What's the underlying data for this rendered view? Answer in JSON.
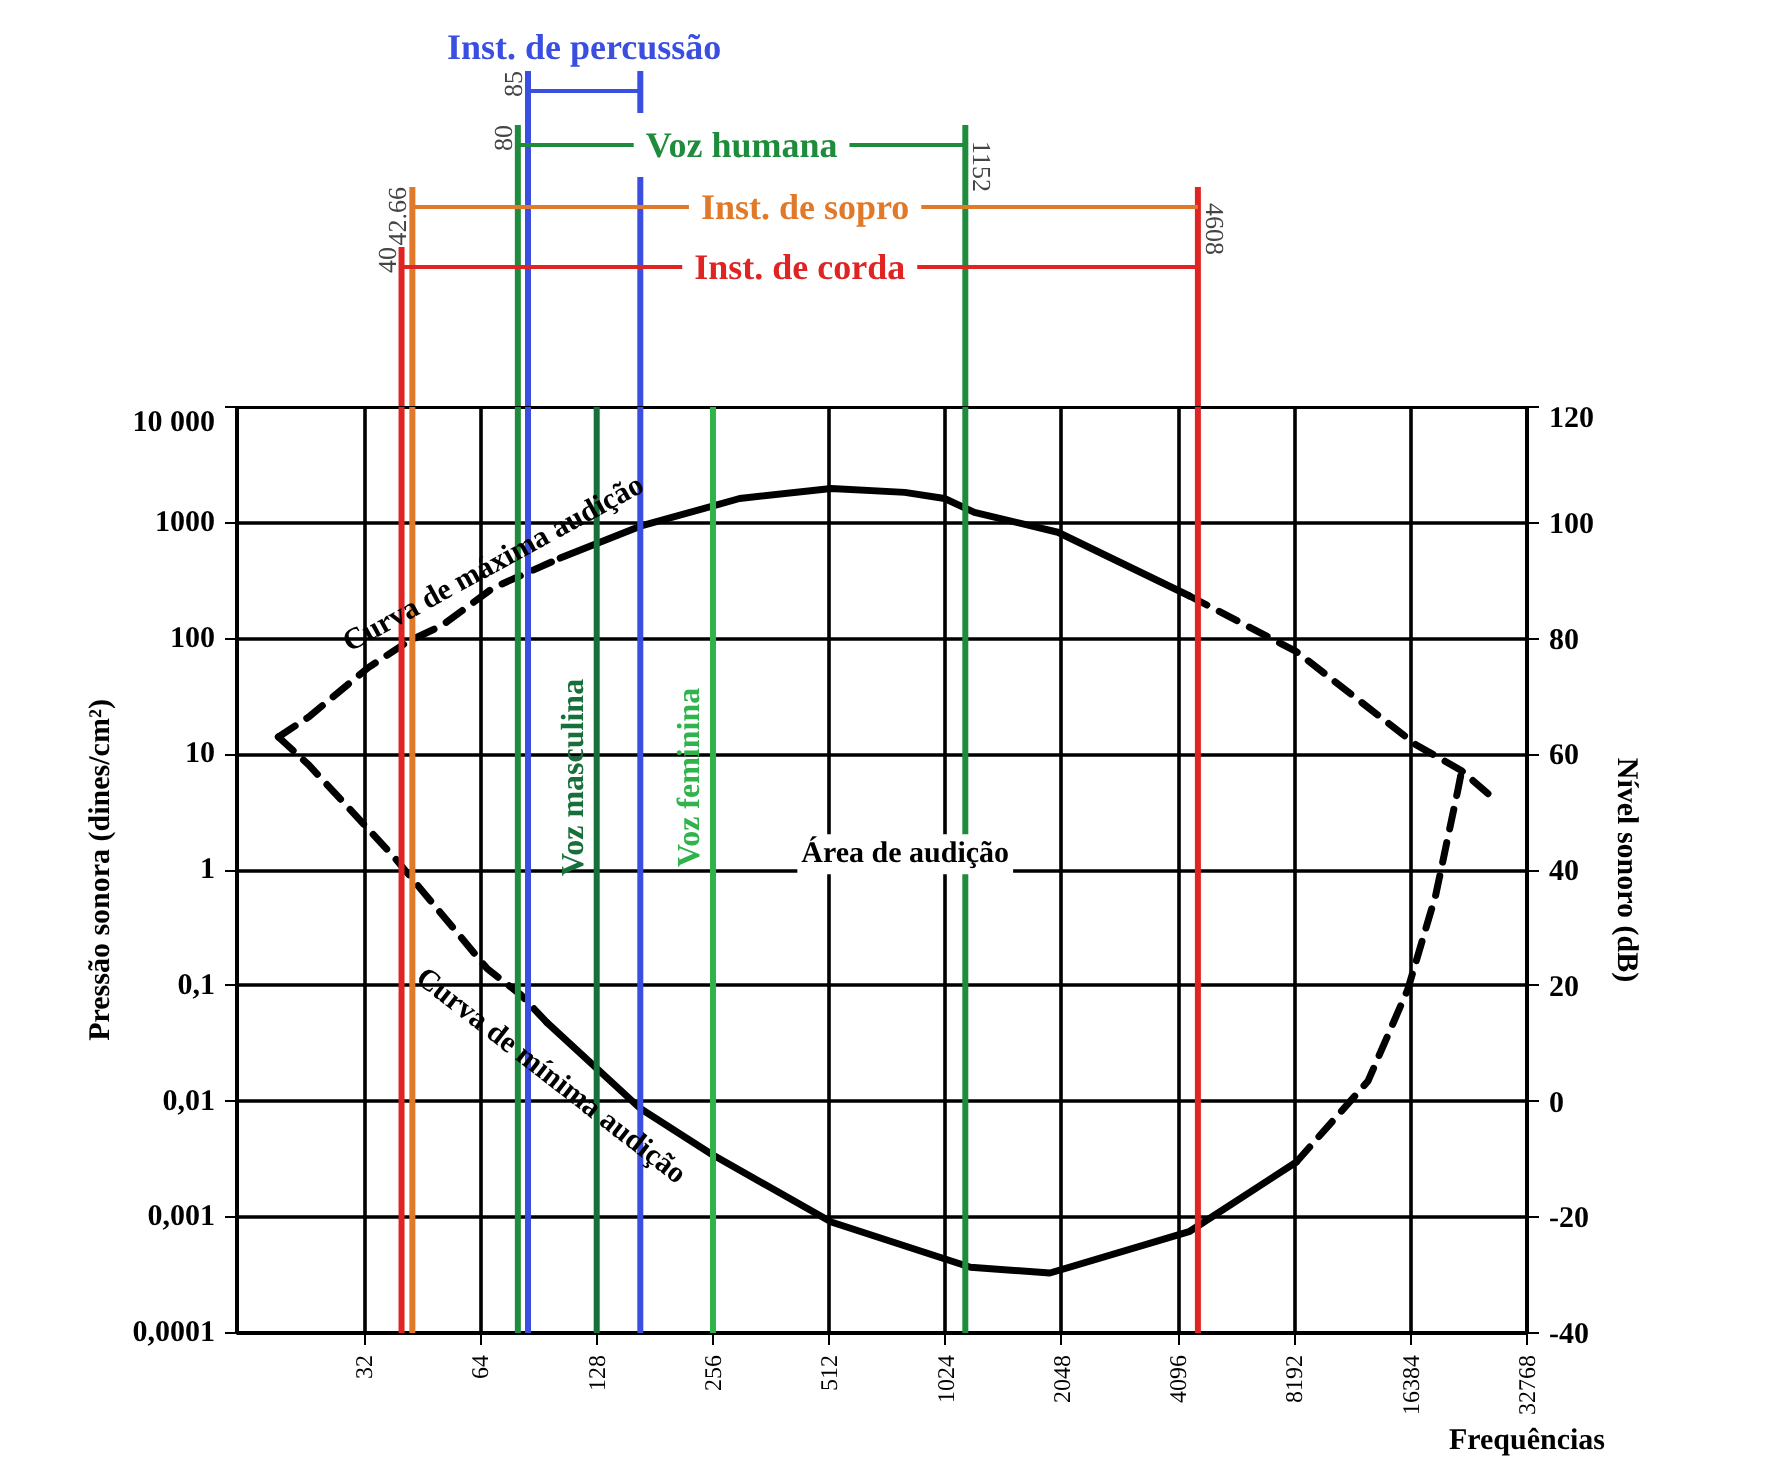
{
  "chart_data": {
    "type": "line",
    "xlabel": "Frequências",
    "ylabel": "Pressão sonora (dines/cm²)",
    "y2label": "Nível sonoro (dB)",
    "log": "xy",
    "xlim": [
      15,
      32768
    ],
    "xticks": [
      32,
      64,
      128,
      256,
      512,
      1024,
      2048,
      4096,
      8192,
      16384,
      32768
    ],
    "ylim": [
      0.0001,
      10000
    ],
    "yticks": [
      {
        "value": 0.0001,
        "label": "0,0001"
      },
      {
        "value": 0.001,
        "label": "0,001"
      },
      {
        "value": 0.01,
        "label": "0,01"
      },
      {
        "value": 0.1,
        "label": "0,1"
      },
      {
        "value": 1,
        "label": "1"
      },
      {
        "value": 10,
        "label": "10"
      },
      {
        "value": 100,
        "label": "100"
      },
      {
        "value": 1000,
        "label": "1000"
      },
      {
        "value": 10000,
        "label": "10 000"
      }
    ],
    "y2lim": [
      -40,
      120
    ],
    "y2ticks": [
      -40,
      -20,
      0,
      20,
      40,
      60,
      80,
      100,
      120
    ],
    "grid": true,
    "series": [
      {
        "color": "#000000",
        "line_style": "dashed",
        "x": [
          19.2,
          23,
          32.8,
          41.5,
          50.8,
          69.1,
          103
        ],
        "values": [
          14.1,
          21,
          56,
          94,
          129,
          274,
          495
        ]
      },
      {
        "color": "#000000",
        "line_style": "solid",
        "x": [
          103,
          166,
          300,
          518,
          803,
          1018,
          1216,
          2000,
          4372
        ],
        "values": [
          495,
          933,
          1620,
          1980,
          1830,
          1620,
          1230,
          828,
          234
        ]
      },
      {
        "color": "#000000",
        "line_style": "dashed",
        "x": [
          4372,
          8290,
          16900,
          22200,
          26500
        ],
        "values": [
          234,
          77,
          12.1,
          7.2,
          4.3
        ]
      },
      {
        "color": "#000000",
        "line_style": "dashed",
        "x": [
          19.2,
          23,
          38.2,
          66.7,
          81.6,
          95.2
        ],
        "values": [
          14.1,
          8.1,
          1.3,
          0.14,
          0.083,
          0.048
        ]
      },
      {
        "color": "#000000",
        "line_style": "solid",
        "x": [
          95.2,
          166,
          254,
          518,
          1188,
          1907,
          4372,
          8290
        ],
        "values": [
          0.048,
          0.0087,
          0.0035,
          0.00091,
          0.00037,
          0.00033,
          0.00075,
          0.003
        ]
      },
      {
        "color": "#000000",
        "line_style": "dashed",
        "x": [
          8290,
          12700,
          16100,
          19000,
          21700,
          22200
        ],
        "values": [
          0.003,
          0.015,
          0.093,
          0.6,
          4.9,
          7.2
        ]
      }
    ],
    "ref_lines": [
      {
        "axis": "x",
        "value": 40,
        "label": "40",
        "color": "#e02424"
      },
      {
        "axis": "x",
        "value": 42.66,
        "label": "42.66",
        "color": "#e07a2a"
      },
      {
        "axis": "x",
        "value": 80,
        "label": "80",
        "color": "#1e8c3c"
      },
      {
        "axis": "x",
        "value": 85,
        "label": "85",
        "color": "#3a4ee0"
      },
      {
        "axis": "x",
        "value": 166,
        "label": null,
        "color": "#3a4ee0"
      },
      {
        "axis": "x",
        "value": 128,
        "label": "Voz masculina",
        "color": "#17703a"
      },
      {
        "axis": "x",
        "value": 256,
        "label": "Voz feminina",
        "color": "#2fb34a"
      },
      {
        "axis": "x",
        "value": 1152,
        "label": "1152",
        "color": "#1e8c3c"
      },
      {
        "axis": "x",
        "value": 4608,
        "label": "4608",
        "color": "#e02424"
      }
    ],
    "annotations": [
      "Curva de máxima audição",
      "Curva de mínima audição",
      "Área de audição",
      "Inst. de percussão",
      "Voz humana",
      "Inst. de sopro",
      "Inst. de corda"
    ]
  }
}
